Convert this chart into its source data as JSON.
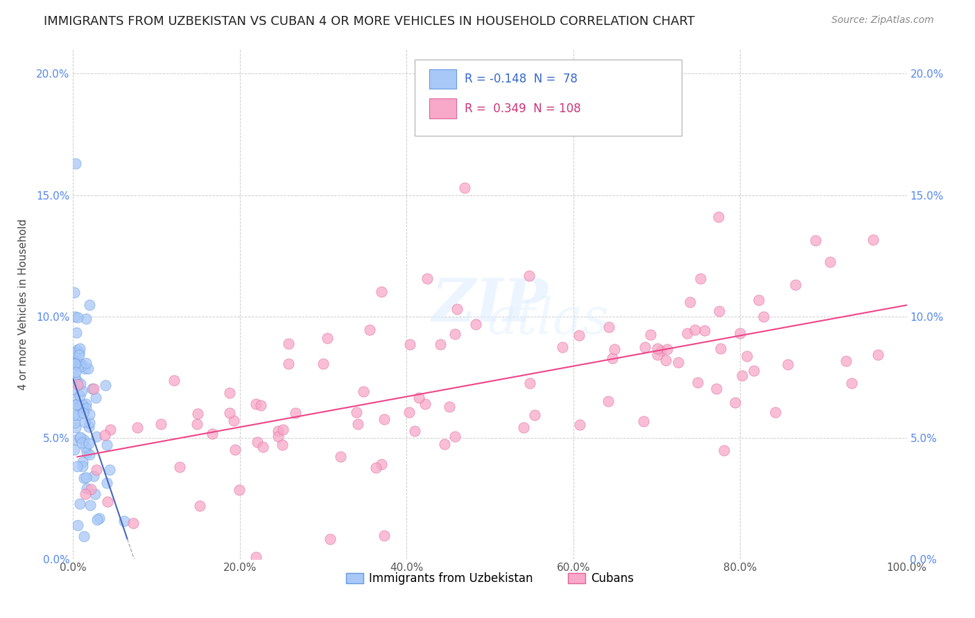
{
  "title": "IMMIGRANTS FROM UZBEKISTAN VS CUBAN 4 OR MORE VEHICLES IN HOUSEHOLD CORRELATION CHART",
  "source": "Source: ZipAtlas.com",
  "ylabel": "4 or more Vehicles in Household",
  "series1_label": "Immigrants from Uzbekistan",
  "series2_label": "Cubans",
  "series1_color": "#a8c8f8",
  "series2_color": "#f8a8c8",
  "series1_edge_color": "#6699dd",
  "series2_edge_color": "#dd6699",
  "series1_line_color": "#4466bb",
  "series2_line_color": "#ee4488",
  "series1_dashed_color": "#aaaaaa",
  "R1": -0.148,
  "N1": 78,
  "R2": 0.349,
  "N2": 108,
  "xlim": [
    0,
    1.0
  ],
  "ylim": [
    0,
    0.21
  ],
  "xtick_labels": [
    "0.0%",
    "20.0%",
    "40.0%",
    "60.0%",
    "80.0%",
    "100.0%"
  ],
  "xtick_vals": [
    0.0,
    0.2,
    0.4,
    0.6,
    0.8,
    1.0
  ],
  "ytick_labels": [
    "0.0%",
    "5.0%",
    "10.0%",
    "15.0%",
    "20.0%"
  ],
  "ytick_vals": [
    0.0,
    0.05,
    0.1,
    0.15,
    0.2
  ],
  "watermark": "ZIPatlas",
  "title_fontsize": 13,
  "source_fontsize": 10,
  "tick_fontsize": 11,
  "ylabel_fontsize": 11
}
